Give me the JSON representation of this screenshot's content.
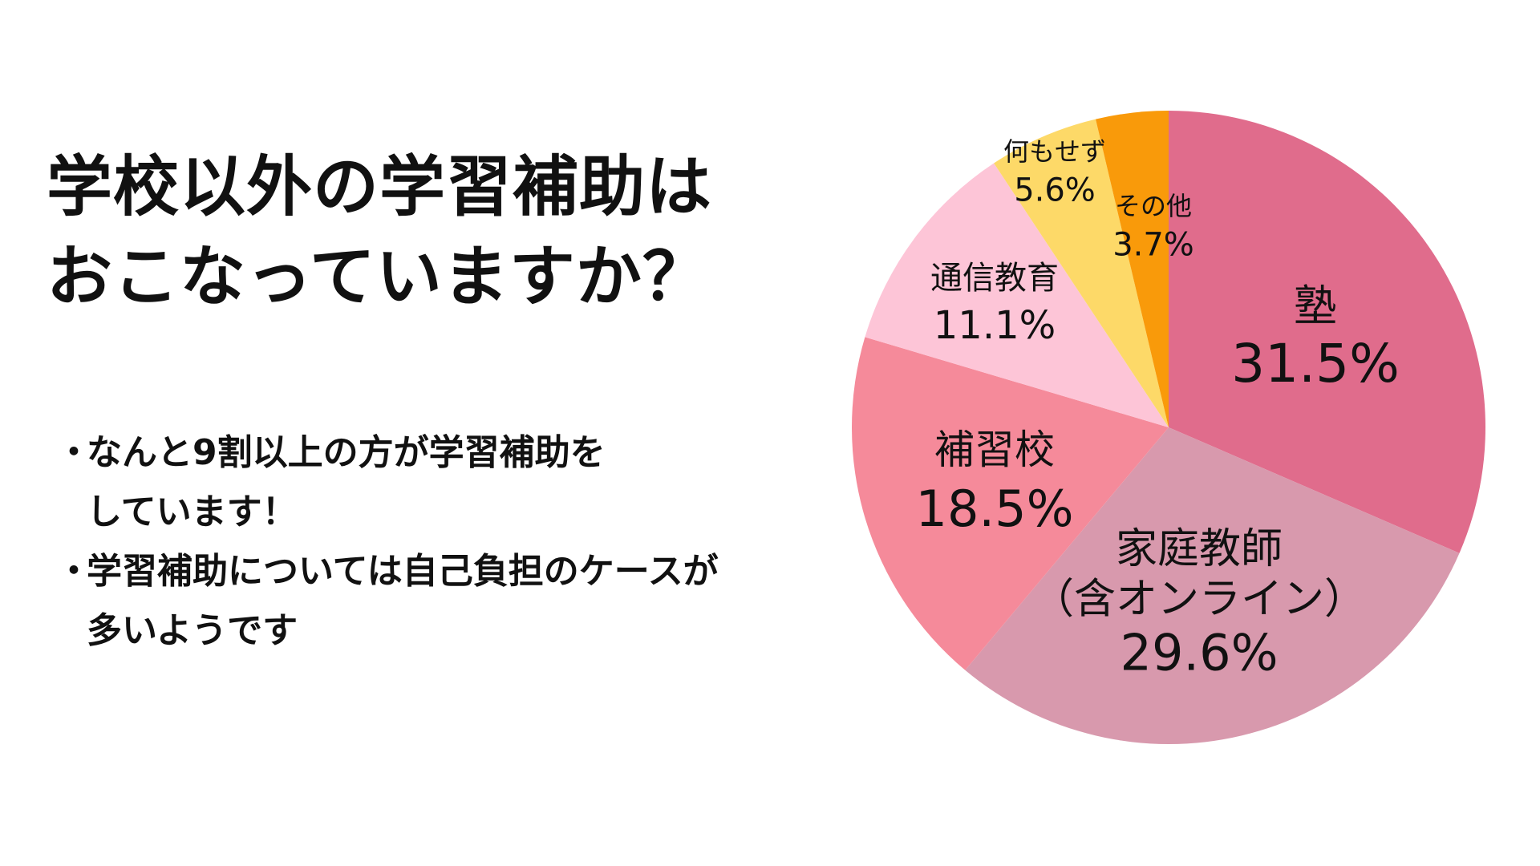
{
  "title": {
    "line1": "学校以外の学習補助は",
    "line2": "おこなっていますか？"
  },
  "bullets": [
    {
      "marker": "・",
      "lines": [
        "なんと9割以上の方が学習補助を",
        "しています！"
      ]
    },
    {
      "marker": "・",
      "lines": [
        "学習補助については自己負担のケースが",
        "多いようです"
      ]
    }
  ],
  "chart_data": {
    "type": "pie",
    "title": "",
    "start_angle_deg": 0,
    "direction": "clockwise",
    "slices": [
      {
        "label": "塾",
        "label_lines": [
          "塾"
        ],
        "value": 31.5,
        "value_label": "31.5%",
        "color": "#E06C8C"
      },
      {
        "label": "家庭教師（含オンライン）",
        "label_lines": [
          "家庭教師",
          "（含オンライン）"
        ],
        "value": 29.6,
        "value_label": "29.6%",
        "color": "#D899AD"
      },
      {
        "label": "補習校",
        "label_lines": [
          "補習校"
        ],
        "value": 18.5,
        "value_label": "18.5%",
        "color": "#F58A9A"
      },
      {
        "label": "通信教育",
        "label_lines": [
          "通信教育"
        ],
        "value": 11.1,
        "value_label": "11.1%",
        "color": "#FDC5D7"
      },
      {
        "label": "何もせず",
        "label_lines": [
          "何もせず"
        ],
        "value": 5.6,
        "value_label": "5.6%",
        "color": "#FDD968"
      },
      {
        "label": "その他",
        "label_lines": [
          "その他"
        ],
        "value": 3.7,
        "value_label": "3.7%",
        "color": "#F99A0A"
      }
    ]
  }
}
